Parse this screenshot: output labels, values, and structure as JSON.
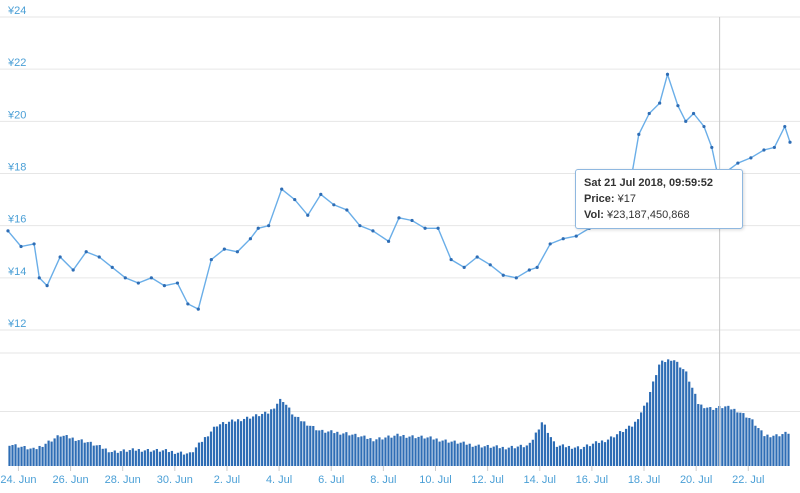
{
  "chart_data": [
    {
      "type": "line",
      "name": "Price",
      "title": "",
      "xlabel": "",
      "ylabel": "",
      "ylim": [
        12,
        24
      ],
      "y_ticks": [
        "¥12",
        "¥14",
        "¥16",
        "¥18",
        "¥20",
        "¥22",
        "¥24"
      ],
      "grid": true,
      "color": "#2e6db5",
      "x_ticks": [
        "24. Jun",
        "26. Jun",
        "28. Jun",
        "30. Jun",
        "2. Jul",
        "4. Jul",
        "6. Jul",
        "8. Jul",
        "10. Jul",
        "12. Jul",
        "14. Jul",
        "16. Jul",
        "18. Jul",
        "20. Jul",
        "22. Jul"
      ],
      "x_tick_days": [
        0.4,
        2.4,
        4.4,
        6.4,
        8.4,
        10.4,
        12.4,
        14.4,
        16.4,
        18.4,
        20.4,
        22.4,
        24.4,
        26.4,
        28.4
      ],
      "x_range_days": [
        0,
        30
      ],
      "x": [
        0,
        0.5,
        1,
        1.2,
        1.5,
        2,
        2.5,
        3,
        3.5,
        4,
        4.5,
        5,
        5.5,
        6,
        6.5,
        6.9,
        7.3,
        7.8,
        8.3,
        8.8,
        9.3,
        9.6,
        10,
        10.5,
        11,
        11.5,
        12,
        12.5,
        13,
        13.5,
        14,
        14.6,
        15,
        15.5,
        16,
        16.5,
        17,
        17.5,
        18,
        18.5,
        19,
        19.5,
        20,
        20.3,
        20.8,
        21.3,
        21.8,
        22.3,
        22.8,
        23.3,
        23.8,
        24.2,
        24.6,
        25,
        25.3,
        25.7,
        26,
        26.3,
        26.7,
        27,
        27.3,
        27.6,
        28,
        28.5,
        29,
        29.4,
        29.8,
        30
      ],
      "values": [
        15.8,
        15.2,
        15.3,
        14.0,
        13.7,
        14.8,
        14.3,
        15.0,
        14.8,
        14.4,
        14.0,
        13.8,
        14.0,
        13.7,
        13.8,
        13.0,
        12.8,
        14.7,
        15.1,
        15.0,
        15.5,
        15.9,
        16.0,
        17.4,
        17.0,
        16.4,
        17.2,
        16.8,
        16.6,
        16.0,
        15.8,
        15.4,
        16.3,
        16.2,
        15.9,
        15.9,
        14.7,
        14.4,
        14.8,
        14.5,
        14.1,
        14.0,
        14.3,
        14.4,
        15.3,
        15.5,
        15.6,
        15.9,
        16.4,
        17.0,
        17.2,
        19.5,
        20.3,
        20.7,
        21.8,
        20.6,
        20.0,
        20.3,
        19.8,
        19.0,
        17.6,
        18.1,
        18.4,
        18.6,
        18.9,
        19.0,
        19.8,
        19.2
      ]
    },
    {
      "type": "bar",
      "name": "Vol",
      "color": "#2e6db5",
      "x_range_days": [
        0,
        30
      ],
      "x": [
        0,
        1,
        2,
        3,
        4,
        5,
        6,
        7,
        8,
        9,
        10,
        10.5,
        11,
        12,
        13,
        14,
        15,
        16,
        17,
        18,
        19,
        20,
        20.5,
        21,
        22,
        23,
        24,
        24.5,
        25,
        25.5,
        26,
        26.5,
        27,
        27.5,
        28,
        28.5,
        29,
        29.5,
        30
      ],
      "values": [
        22,
        16,
        30,
        24,
        14,
        16,
        15,
        12,
        40,
        46,
        52,
        66,
        48,
        34,
        32,
        26,
        30,
        28,
        24,
        20,
        18,
        20,
        44,
        20,
        18,
        26,
        40,
        62,
        100,
        105,
        92,
        60,
        56,
        58,
        54,
        46,
        30,
        30,
        33
      ]
    }
  ],
  "tooltip": {
    "timestamp": "Sat 21 Jul 2018, 09:59:52",
    "price_label": "Price:",
    "price_value": " ¥17",
    "vol_label": "Vol:",
    "vol_value": " ¥23,187,450,868"
  }
}
